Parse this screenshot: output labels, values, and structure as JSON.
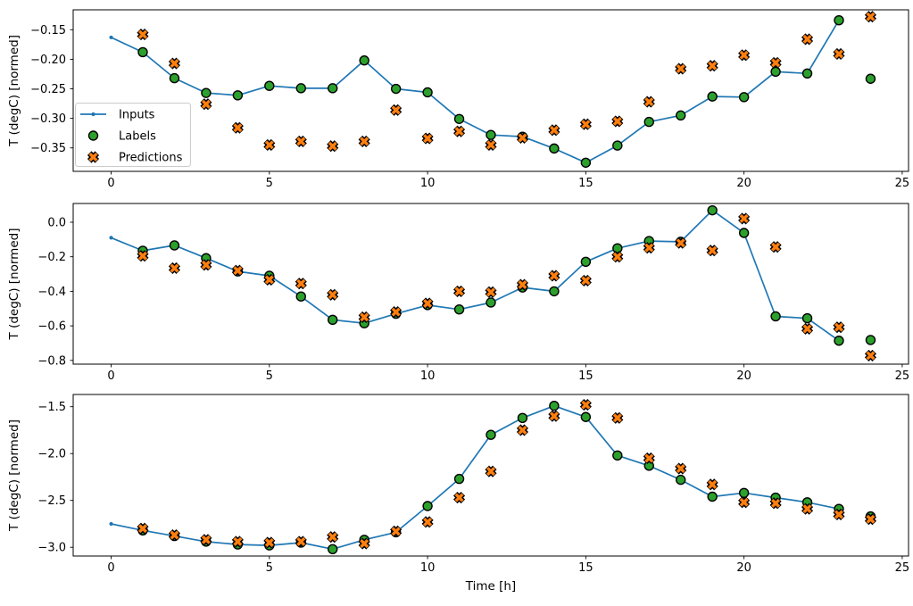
{
  "figure": {
    "xlabel": "Time [h]",
    "ylabel": "T (degC) [normed]",
    "background": "#ffffff",
    "colors": {
      "inputs": "#1f77b4",
      "labels": "#2ca02c",
      "predictions": "#ff7f0e",
      "marker_edge": "#000000",
      "spine": "#000000",
      "legend_border": "#cccccc"
    },
    "legend": {
      "location": "lower left of first panel",
      "entries": [
        {
          "label": "Inputs",
          "marker": "line-with-dot",
          "color": "#1f77b4"
        },
        {
          "label": "Labels",
          "marker": "filled-circle",
          "color": "#2ca02c",
          "edge": "#000000"
        },
        {
          "label": "Predictions",
          "marker": "thick-x",
          "color": "#ff7f0e",
          "edge": "#000000"
        }
      ]
    }
  },
  "chart_data": [
    {
      "type": "line",
      "panel": 1,
      "ylabel": "T (degC) [normed]",
      "xlabel": "",
      "show_legend": true,
      "grid": false,
      "xlim": [
        -1.2,
        25.2
      ],
      "ylim": [
        -0.3897,
        -0.1163
      ],
      "xticks": {
        "values": [
          0,
          5,
          10,
          15,
          20,
          25
        ],
        "labels": [
          "0",
          "5",
          "10",
          "15",
          "20",
          "25"
        ]
      },
      "yticks": {
        "values": [
          -0.15,
          -0.2,
          -0.25,
          -0.3,
          -0.35
        ],
        "labels": [
          "−0.15",
          "−0.20",
          "−0.25",
          "−0.30",
          "−0.35"
        ]
      },
      "series": [
        {
          "name": "Inputs",
          "type": "line+dot",
          "x": [
            0,
            1,
            2,
            3,
            4,
            5,
            6,
            7,
            8,
            9,
            10,
            11,
            12,
            13,
            14,
            15,
            16,
            17,
            18,
            19,
            20,
            21,
            22,
            23
          ],
          "y": [
            -0.163,
            -0.188,
            -0.232,
            -0.257,
            -0.261,
            -0.245,
            -0.249,
            -0.249,
            -0.202,
            -0.25,
            -0.256,
            -0.301,
            -0.328,
            -0.331,
            -0.351,
            -0.375,
            -0.346,
            -0.306,
            -0.295,
            -0.263,
            -0.264,
            -0.221,
            -0.224,
            -0.134
          ]
        },
        {
          "name": "Labels",
          "type": "scatter-circle",
          "x": [
            1,
            2,
            3,
            4,
            5,
            6,
            7,
            8,
            9,
            10,
            11,
            12,
            13,
            14,
            15,
            16,
            17,
            18,
            19,
            20,
            21,
            22,
            23,
            24
          ],
          "y": [
            -0.188,
            -0.232,
            -0.257,
            -0.261,
            -0.245,
            -0.249,
            -0.249,
            -0.202,
            -0.25,
            -0.256,
            -0.301,
            -0.328,
            -0.331,
            -0.351,
            -0.375,
            -0.346,
            -0.306,
            -0.295,
            -0.263,
            -0.264,
            -0.221,
            -0.224,
            -0.134,
            -0.233
          ]
        },
        {
          "name": "Predictions",
          "type": "scatter-x",
          "x": [
            1,
            2,
            3,
            4,
            5,
            6,
            7,
            8,
            9,
            10,
            11,
            12,
            13,
            14,
            15,
            16,
            17,
            18,
            19,
            20,
            21,
            22,
            23,
            24
          ],
          "y": [
            -0.158,
            -0.207,
            -0.276,
            -0.316,
            -0.345,
            -0.339,
            -0.347,
            -0.339,
            -0.286,
            -0.334,
            -0.322,
            -0.345,
            -0.333,
            -0.32,
            -0.31,
            -0.305,
            -0.272,
            -0.216,
            -0.211,
            -0.193,
            -0.206,
            -0.166,
            -0.191,
            -0.128
          ]
        }
      ]
    },
    {
      "type": "line",
      "panel": 2,
      "ylabel": "T (degC) [normed]",
      "xlabel": "",
      "show_legend": false,
      "grid": false,
      "xlim": [
        -1.2,
        25.2
      ],
      "ylim": [
        -0.8217,
        0.1085
      ],
      "xticks": {
        "values": [
          0,
          5,
          10,
          15,
          20,
          25
        ],
        "labels": [
          "0",
          "5",
          "10",
          "15",
          "20",
          "25"
        ]
      },
      "yticks": {
        "values": [
          0.0,
          -0.2,
          -0.4,
          -0.6,
          -0.8
        ],
        "labels": [
          "0.0",
          "−0.2",
          "−0.4",
          "−0.6",
          "−0.8"
        ]
      },
      "series": [
        {
          "name": "Inputs",
          "type": "line+dot",
          "x": [
            0,
            1,
            2,
            3,
            4,
            5,
            6,
            7,
            8,
            9,
            10,
            11,
            12,
            13,
            14,
            15,
            16,
            17,
            18,
            19,
            20,
            21,
            22,
            23
          ],
          "y": [
            -0.09,
            -0.165,
            -0.134,
            -0.208,
            -0.285,
            -0.31,
            -0.43,
            -0.565,
            -0.585,
            -0.53,
            -0.48,
            -0.505,
            -0.465,
            -0.378,
            -0.4,
            -0.229,
            -0.151,
            -0.109,
            -0.113,
            0.069,
            -0.062,
            -0.545,
            -0.556,
            -0.686
          ]
        },
        {
          "name": "Labels",
          "type": "scatter-circle",
          "x": [
            1,
            2,
            3,
            4,
            5,
            6,
            7,
            8,
            9,
            10,
            11,
            12,
            13,
            14,
            15,
            16,
            17,
            18,
            19,
            20,
            21,
            22,
            23,
            24
          ],
          "y": [
            -0.165,
            -0.134,
            -0.208,
            -0.285,
            -0.31,
            -0.43,
            -0.565,
            -0.585,
            -0.53,
            -0.48,
            -0.505,
            -0.465,
            -0.378,
            -0.4,
            -0.229,
            -0.151,
            -0.109,
            -0.113,
            0.069,
            -0.062,
            -0.545,
            -0.556,
            -0.686,
            -0.682
          ]
        },
        {
          "name": "Predictions",
          "type": "scatter-x",
          "x": [
            1,
            2,
            3,
            4,
            5,
            6,
            7,
            8,
            9,
            10,
            11,
            12,
            13,
            14,
            15,
            16,
            17,
            18,
            19,
            20,
            21,
            22,
            23,
            24
          ],
          "y": [
            -0.195,
            -0.266,
            -0.247,
            -0.28,
            -0.333,
            -0.355,
            -0.42,
            -0.55,
            -0.52,
            -0.47,
            -0.4,
            -0.405,
            -0.362,
            -0.31,
            -0.338,
            -0.2,
            -0.148,
            -0.12,
            -0.164,
            0.021,
            -0.143,
            -0.617,
            -0.608,
            -0.772
          ]
        }
      ]
    },
    {
      "type": "line",
      "panel": 3,
      "ylabel": "T (degC) [normed]",
      "xlabel": "Time [h]",
      "show_legend": false,
      "grid": false,
      "xlim": [
        -1.2,
        25.2
      ],
      "ylim": [
        -3.0933,
        -1.3695
      ],
      "xticks": {
        "values": [
          0,
          5,
          10,
          15,
          20,
          25
        ],
        "labels": [
          "0",
          "5",
          "10",
          "15",
          "20",
          "25"
        ]
      },
      "yticks": {
        "values": [
          -1.5,
          -2.0,
          -2.5,
          -3.0
        ],
        "labels": [
          "−1.5",
          "−2.0",
          "−2.5",
          "−3.0"
        ]
      },
      "series": [
        {
          "name": "Inputs",
          "type": "line+dot",
          "x": [
            0,
            1,
            2,
            3,
            4,
            5,
            6,
            7,
            8,
            9,
            10,
            11,
            12,
            13,
            14,
            15,
            16,
            17,
            18,
            19,
            20,
            21,
            22,
            23
          ],
          "y": [
            -2.75,
            -2.82,
            -2.88,
            -2.94,
            -2.97,
            -2.98,
            -2.95,
            -3.02,
            -2.92,
            -2.84,
            -2.56,
            -2.27,
            -1.8,
            -1.62,
            -1.49,
            -1.61,
            -2.02,
            -2.13,
            -2.28,
            -2.46,
            -2.42,
            -2.47,
            -2.52,
            -2.59
          ]
        },
        {
          "name": "Labels",
          "type": "scatter-circle",
          "x": [
            1,
            2,
            3,
            4,
            5,
            6,
            7,
            8,
            9,
            10,
            11,
            12,
            13,
            14,
            15,
            16,
            17,
            18,
            19,
            20,
            21,
            22,
            23,
            24
          ],
          "y": [
            -2.82,
            -2.88,
            -2.94,
            -2.97,
            -2.98,
            -2.95,
            -3.02,
            -2.92,
            -2.84,
            -2.56,
            -2.27,
            -1.8,
            -1.62,
            -1.49,
            -1.61,
            -2.02,
            -2.13,
            -2.28,
            -2.46,
            -2.42,
            -2.47,
            -2.52,
            -2.59,
            -2.67
          ]
        },
        {
          "name": "Predictions",
          "type": "scatter-x",
          "x": [
            1,
            2,
            3,
            4,
            5,
            6,
            7,
            8,
            9,
            10,
            11,
            12,
            13,
            14,
            15,
            16,
            17,
            18,
            19,
            20,
            21,
            22,
            23,
            24
          ],
          "y": [
            -2.8,
            -2.87,
            -2.92,
            -2.94,
            -2.95,
            -2.94,
            -2.89,
            -2.96,
            -2.83,
            -2.73,
            -2.47,
            -2.19,
            -1.75,
            -1.6,
            -1.48,
            -1.62,
            -2.05,
            -2.16,
            -2.33,
            -2.52,
            -2.53,
            -2.59,
            -2.65,
            -2.7
          ]
        }
      ]
    }
  ]
}
